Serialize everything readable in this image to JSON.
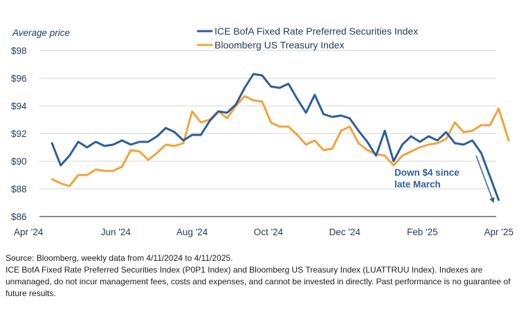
{
  "chart_data": {
    "type": "line",
    "title": "",
    "ylabel": "Average price",
    "xlabel": "",
    "ylim": [
      86,
      98
    ],
    "y_ticks": [
      "$98",
      "$96",
      "$94",
      "$92",
      "$90",
      "$88",
      "$86"
    ],
    "y_tick_values": [
      98,
      96,
      94,
      92,
      90,
      88,
      86
    ],
    "x_ticks": [
      "Apr '24",
      "Jun '24",
      "Aug '24",
      "Oct '24",
      "Dec '24",
      "Feb '25",
      "Apr '25"
    ],
    "x_tick_dates": [
      "2024-04-01",
      "2024-06-01",
      "2024-08-01",
      "2024-10-01",
      "2024-12-01",
      "2025-02-01",
      "2025-04-01"
    ],
    "grid": "horizontal",
    "legend_position": "top",
    "x": [
      "2024-04-11",
      "2024-04-18",
      "2024-04-25",
      "2024-05-02",
      "2024-05-09",
      "2024-05-16",
      "2024-05-23",
      "2024-05-30",
      "2024-06-06",
      "2024-06-13",
      "2024-06-20",
      "2024-06-27",
      "2024-07-04",
      "2024-07-11",
      "2024-07-18",
      "2024-07-25",
      "2024-08-01",
      "2024-08-08",
      "2024-08-15",
      "2024-08-22",
      "2024-08-29",
      "2024-09-05",
      "2024-09-12",
      "2024-09-19",
      "2024-09-26",
      "2024-10-03",
      "2024-10-10",
      "2024-10-17",
      "2024-10-24",
      "2024-10-31",
      "2024-11-07",
      "2024-11-14",
      "2024-11-21",
      "2024-11-28",
      "2024-12-05",
      "2024-12-12",
      "2024-12-19",
      "2024-12-26",
      "2025-01-02",
      "2025-01-09",
      "2025-01-16",
      "2025-01-23",
      "2025-01-30",
      "2025-02-06",
      "2025-02-13",
      "2025-02-20",
      "2025-02-27",
      "2025-03-06",
      "2025-03-13",
      "2025-03-20",
      "2025-03-27",
      "2025-04-03",
      "2025-04-11"
    ],
    "series": [
      {
        "name": "ICE BofA Fixed Rate Preferred Securities Index",
        "color": "#2a5d9c",
        "values": [
          91.3,
          89.7,
          90.4,
          91.4,
          91.0,
          91.4,
          91.1,
          91.2,
          91.5,
          91.2,
          91.4,
          91.4,
          91.8,
          92.4,
          92.1,
          91.5,
          91.9,
          91.9,
          92.9,
          93.6,
          93.5,
          94.1,
          95.3,
          96.3,
          96.2,
          95.4,
          95.3,
          95.6,
          94.5,
          93.5,
          94.8,
          93.4,
          93.2,
          93.3,
          93.1,
          92.2,
          91.4,
          90.4,
          92.2,
          90.0,
          91.2,
          91.8,
          91.4,
          91.8,
          91.5,
          92.1,
          91.3,
          91.2,
          91.5,
          90.6,
          88.9,
          87.2,
          null
        ]
      },
      {
        "name": "Bloomberg US Treasury Index",
        "color": "#f2a33a",
        "values": [
          88.7,
          88.4,
          88.2,
          89.0,
          89.0,
          89.4,
          89.3,
          89.3,
          89.6,
          90.8,
          90.7,
          90.1,
          90.6,
          91.2,
          91.1,
          91.3,
          93.6,
          92.8,
          93.0,
          93.6,
          93.1,
          94.0,
          94.7,
          94.4,
          94.3,
          92.8,
          92.5,
          92.5,
          91.9,
          91.2,
          91.5,
          90.8,
          90.9,
          92.2,
          92.5,
          91.3,
          90.8,
          90.5,
          90.4,
          89.7,
          90.4,
          90.7,
          91.0,
          91.2,
          91.3,
          91.6,
          92.8,
          92.1,
          92.2,
          92.6,
          92.6,
          93.8,
          91.5
        ]
      }
    ],
    "annotation": {
      "lines": [
        "Down $4 since",
        "late March"
      ],
      "arrow_from": {
        "date": "2025-03-16",
        "value": 90.4
      },
      "arrow_to": {
        "date": "2025-03-30",
        "value": 87.0
      }
    }
  },
  "footnotes": {
    "source": "Source: Bloomberg, weekly data from 4/11/2024 to 4/11/2025.",
    "disclaimer": "ICE BofA Fixed Rate Preferred Securities Index (P0P1 Index) and Bloomberg US Treasury Index (LUATTRUU Index). Indexes are unmanaged, do not incur management fees, costs and expenses, and cannot be invested in directly. Past performance is no guarantee of future results."
  }
}
